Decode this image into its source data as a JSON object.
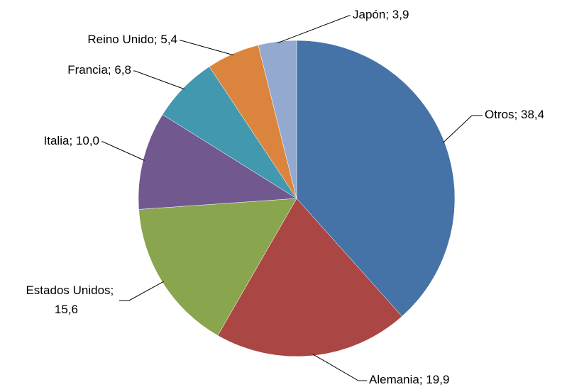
{
  "chart_data": {
    "type": "pie",
    "categories": [
      "Otros",
      "Alemania",
      "Estados Unidos",
      "Italia",
      "Francia",
      "Reino Unido",
      "Japón"
    ],
    "values": [
      38.4,
      19.9,
      15.6,
      10.0,
      6.8,
      5.4,
      3.9
    ],
    "value_labels": [
      "38,4",
      "19,9",
      "15,6",
      "10,0",
      "6,8",
      "5,4",
      "3,9"
    ],
    "label_separator": "; ",
    "colors": [
      "#4572a7",
      "#aa4643",
      "#89a54e",
      "#71588f",
      "#4198af",
      "#db843d",
      "#93a9cf"
    ]
  }
}
